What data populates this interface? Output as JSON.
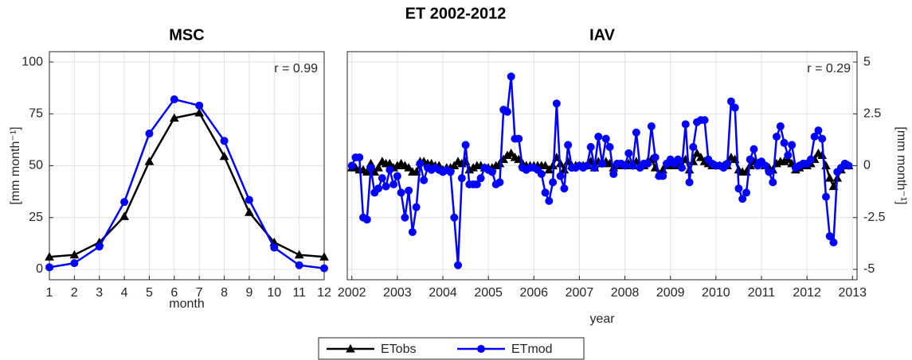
{
  "suptitle": "ET 2002-2012",
  "chart_data": [
    {
      "type": "line",
      "title": "MSC",
      "xlabel": "month",
      "ylabel": "[mm month⁻¹]",
      "annotation": "r = 0.99",
      "x": [
        1,
        2,
        3,
        4,
        5,
        6,
        7,
        8,
        9,
        10,
        11,
        12
      ],
      "xlim": [
        1,
        12
      ],
      "xticks": [
        1,
        2,
        3,
        4,
        5,
        6,
        7,
        8,
        9,
        10,
        11,
        12
      ],
      "ylim": [
        -5,
        105
      ],
      "yticks": [
        0,
        25,
        50,
        75,
        100
      ],
      "y_axis_side": "left",
      "grid": true,
      "series": [
        {
          "name": "ETobs",
          "color": "#000000",
          "marker": "triangle",
          "values": [
            6,
            7,
            13,
            25.5,
            52,
            73,
            75.5,
            54.5,
            27.5,
            13,
            7,
            6
          ]
        },
        {
          "name": "ETmod",
          "color": "#0000ff",
          "marker": "circle",
          "values": [
            1,
            3,
            11,
            32.5,
            65.5,
            82,
            79,
            62,
            33.5,
            10.5,
            2,
            0.5
          ]
        }
      ]
    },
    {
      "type": "line",
      "title": "IAV",
      "xlabel": "year",
      "ylabel": "[mm month⁻¹]",
      "annotation": "r = 0.29",
      "x": [
        2002,
        2002.083,
        2002.167,
        2002.25,
        2002.333,
        2002.417,
        2002.5,
        2002.583,
        2002.667,
        2002.75,
        2002.833,
        2002.917,
        2003,
        2003.083,
        2003.167,
        2003.25,
        2003.333,
        2003.417,
        2003.5,
        2003.583,
        2003.667,
        2003.75,
        2003.833,
        2003.917,
        2004,
        2004.083,
        2004.167,
        2004.25,
        2004.333,
        2004.417,
        2004.5,
        2004.583,
        2004.667,
        2004.75,
        2004.833,
        2004.917,
        2005,
        2005.083,
        2005.167,
        2005.25,
        2005.333,
        2005.417,
        2005.5,
        2005.583,
        2005.667,
        2005.75,
        2005.833,
        2005.917,
        2006,
        2006.083,
        2006.167,
        2006.25,
        2006.333,
        2006.417,
        2006.5,
        2006.583,
        2006.667,
        2006.75,
        2006.833,
        2006.917,
        2007,
        2007.083,
        2007.167,
        2007.25,
        2007.333,
        2007.417,
        2007.5,
        2007.583,
        2007.667,
        2007.75,
        2007.833,
        2007.917,
        2008,
        2008.083,
        2008.167,
        2008.25,
        2008.333,
        2008.417,
        2008.5,
        2008.583,
        2008.667,
        2008.75,
        2008.833,
        2008.917,
        2009,
        2009.083,
        2009.167,
        2009.25,
        2009.333,
        2009.417,
        2009.5,
        2009.583,
        2009.667,
        2009.75,
        2009.833,
        2009.917,
        2010,
        2010.083,
        2010.167,
        2010.25,
        2010.333,
        2010.417,
        2010.5,
        2010.583,
        2010.667,
        2010.75,
        2010.833,
        2010.917,
        2011,
        2011.083,
        2011.167,
        2011.25,
        2011.333,
        2011.417,
        2011.5,
        2011.583,
        2011.667,
        2011.75,
        2011.833,
        2011.917,
        2012,
        2012.083,
        2012.167,
        2012.25,
        2012.333,
        2012.417,
        2012.5,
        2012.583,
        2012.667,
        2012.75,
        2012.833,
        2012.917
      ],
      "xlim": [
        2001.9,
        2013.1
      ],
      "xticks": [
        2002,
        2003,
        2004,
        2005,
        2006,
        2007,
        2008,
        2009,
        2010,
        2011,
        2012,
        2013
      ],
      "ylim": [
        -5.5,
        5.5
      ],
      "yticks": [
        -5,
        -2.5,
        0,
        2.5,
        5
      ],
      "y_axis_side": "right",
      "grid": true,
      "series": [
        {
          "name": "ETobs",
          "color": "#000000",
          "marker": "triangle",
          "values": [
            -0.1,
            -0.1,
            -0.2,
            -0.2,
            -0.3,
            0.1,
            -0.3,
            -0.1,
            0.2,
            0.1,
            0.1,
            -0.1,
            0,
            0.1,
            0,
            -0.1,
            -0.3,
            -0.3,
            0.2,
            0.2,
            0.1,
            0.1,
            0,
            0,
            -0.2,
            -0.1,
            -0.1,
            0,
            0.2,
            0.1,
            0.2,
            -0.2,
            -0.1,
            0,
            0,
            -0.1,
            -0.1,
            -0.1,
            0,
            0.1,
            0.3,
            0.5,
            0.6,
            0.4,
            0.3,
            0.1,
            0,
            0,
            0,
            0,
            0,
            0,
            -0.2,
            0,
            0.4,
            0.1,
            -0.2,
            0.2,
            0,
            0,
            0,
            0,
            0,
            0.2,
            -0.1,
            0.2,
            0.1,
            0.2,
            0.1,
            -0.1,
            0,
            0,
            0,
            0.1,
            0,
            0.2,
            0,
            0,
            0.2,
            0.3,
            -0.1,
            -0.4,
            -0.2,
            0,
            0.1,
            0,
            0.1,
            0,
            0.3,
            -0.2,
            0.2,
            0.6,
            0.4,
            0.2,
            0.1,
            0,
            0,
            0,
            0,
            0,
            0.4,
            0.3,
            -0.2,
            -0.3,
            -0.3,
            0,
            0.2,
            0.1,
            0.1,
            0,
            -0.1,
            -0.2,
            0.1,
            0.2,
            0.2,
            0.3,
            0.1,
            -0.2,
            -0.1,
            0,
            0,
            0.1,
            0.3,
            0.6,
            0.5,
            0,
            -0.6,
            -1.0,
            -0.6,
            -0.2,
            0,
            0
          ]
        },
        {
          "name": "ETmod",
          "color": "#0000ff",
          "marker": "circle",
          "values": [
            0,
            0.4,
            0.4,
            -2.5,
            -2.6,
            -0.1,
            -1.3,
            -1.1,
            -0.6,
            -1.0,
            -0.2,
            -0.9,
            -0.5,
            -1.3,
            -2.5,
            -1.2,
            -3.2,
            -2.0,
            0.1,
            -0.7,
            -0.1,
            -0.2,
            -0.1,
            -0.2,
            -0.3,
            -0.2,
            -0.3,
            -2.5,
            -4.8,
            -0.6,
            1.0,
            -0.9,
            -0.9,
            -0.9,
            -0.6,
            -0.1,
            -0.2,
            -0.3,
            -0.9,
            -0.8,
            2.7,
            2.6,
            4.3,
            1.3,
            1.3,
            -0.1,
            -0.2,
            -0.1,
            -0.1,
            -0.2,
            -0.4,
            -1.3,
            -1.7,
            -0.8,
            3.0,
            -0.5,
            -1.1,
            1.0,
            -0.1,
            -0.1,
            0,
            -0.1,
            0,
            0.9,
            -0.1,
            1.4,
            0.1,
            1.3,
            0.9,
            -0.4,
            0.1,
            0.1,
            0,
            0.6,
            0,
            1.6,
            -0.1,
            0.1,
            0.1,
            1.9,
            0.4,
            -0.5,
            -0.5,
            0.1,
            0.3,
            0.1,
            0.3,
            -0.1,
            2.0,
            -0.8,
            0.9,
            2.1,
            2.2,
            2.2,
            0.3,
            0.1,
            0,
            0,
            -0.1,
            0.1,
            3.1,
            2.8,
            -1.1,
            -1.6,
            -1.3,
            0.3,
            0.8,
            0,
            0.2,
            0,
            -0.3,
            -0.8,
            1.4,
            1.9,
            1.1,
            0.5,
            1.0,
            -0.1,
            0,
            0.1,
            0.1,
            0.3,
            1.4,
            1.7,
            1.3,
            -1.5,
            -3.4,
            -3.7,
            -0.3,
            -0.1,
            0.1,
            0
          ]
        }
      ]
    }
  ]
}
